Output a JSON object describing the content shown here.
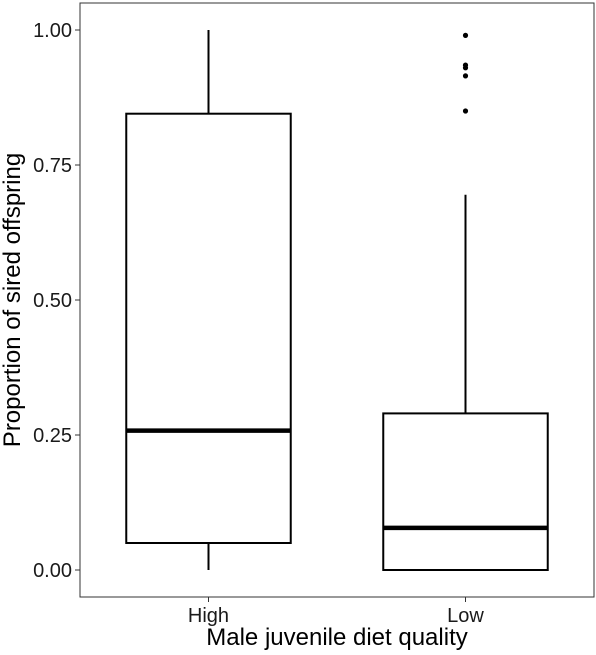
{
  "chart_data": {
    "type": "boxplot",
    "title": "",
    "xlabel": "Male juvenile diet quality",
    "ylabel": "Proportion of sired offspring",
    "categories": [
      "High",
      "Low"
    ],
    "ylim": [
      -0.05,
      1.05
    ],
    "yticks": [
      0.0,
      0.25,
      0.5,
      0.75,
      1.0
    ],
    "ytick_labels": [
      "0.00",
      "0.25",
      "0.50",
      "0.75",
      "1.00"
    ],
    "grid": false,
    "boxes": [
      {
        "category": "High",
        "whisker_low": 0.0,
        "q1": 0.05,
        "median": 0.258,
        "q3": 0.845,
        "whisker_high": 1.0,
        "outliers": []
      },
      {
        "category": "Low",
        "whisker_low": 0.0,
        "q1": 0.0,
        "median": 0.078,
        "q3": 0.29,
        "whisker_high": 0.695,
        "outliers": [
          0.85,
          0.915,
          0.93,
          0.935,
          0.99
        ]
      }
    ]
  }
}
